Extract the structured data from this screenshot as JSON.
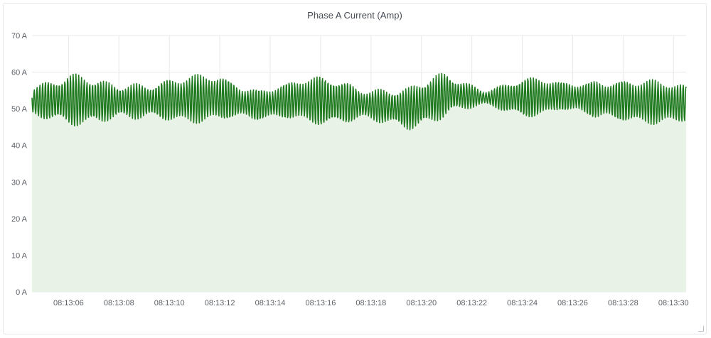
{
  "panel": {
    "title": "Phase A Current (Amp)"
  },
  "chart_data": {
    "type": "area",
    "title": "Phase A Current (Amp)",
    "xlabel": "",
    "ylabel": "",
    "y_unit": "A",
    "ylim": [
      0,
      70
    ],
    "yticks": [
      0,
      10,
      20,
      30,
      40,
      50,
      60,
      70
    ],
    "yticks_labels": [
      "0 A",
      "10 A",
      "20 A",
      "30 A",
      "40 A",
      "50 A",
      "60 A",
      "70 A"
    ],
    "xlim": [
      "08:13:04.550",
      "08:13:30.500"
    ],
    "xticks": [
      "08:13:06",
      "08:13:08",
      "08:13:10",
      "08:13:12",
      "08:13:14",
      "08:13:16",
      "08:13:18",
      "08:13:20",
      "08:13:22",
      "08:13:24",
      "08:13:26",
      "08:13:28",
      "08:13:30"
    ],
    "grid": true,
    "legend": "none",
    "series": [
      {
        "color": "#1f7a1f",
        "fill": "#e8f2e6",
        "x": [
          "08:13:04.5",
          "08:13:06.0",
          "08:13:07.5",
          "08:13:09.0",
          "08:13:10.5",
          "08:13:12.0",
          "08:13:13.5",
          "08:13:15.0",
          "08:13:16.5",
          "08:13:18.0",
          "08:13:19.5",
          "08:13:21.0",
          "08:13:22.5",
          "08:13:24.0",
          "08:13:25.5",
          "08:13:27.0",
          "08:13:28.5",
          "08:13:30.5"
        ],
        "y_min": [
          46,
          45,
          46,
          45,
          46,
          46,
          45,
          47,
          44,
          45,
          44,
          47,
          50,
          47,
          49,
          45,
          46,
          45
        ],
        "y_max": [
          58,
          60,
          58,
          59,
          59,
          60,
          57,
          58,
          60,
          57,
          56,
          61,
          56,
          59,
          58,
          60,
          58,
          58
        ],
        "oscillation_period_s": 0.11
      }
    ]
  }
}
